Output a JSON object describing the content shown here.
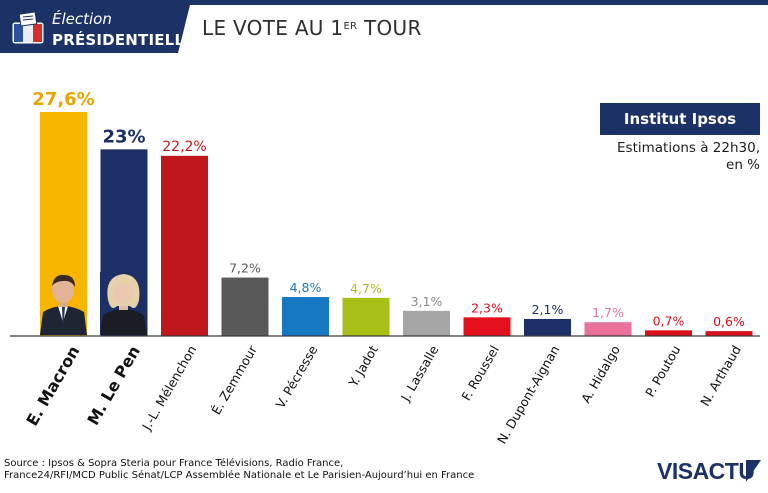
{
  "header": {
    "badge_line1": "Élection",
    "badge_line2": "PRÉSIDENTIELLE",
    "headline_main": "LE VOTE AU 1",
    "headline_sup": "ER",
    "headline_end": " TOUR"
  },
  "institute": {
    "name": "Institut Ipsos",
    "note_line1": "Estimations à 22h30,",
    "note_line2": "en %"
  },
  "source": {
    "line1": "Source : Ipsos & Sopra Steria pour France Télévisions, Radio France,",
    "line2": "France24/RFI/MCD Public Sénat/LCP Assemblée Nationale et Le Parisien-Aujourd’hui en France"
  },
  "logo": {
    "text": "VISACTU"
  },
  "chart_data": {
    "type": "bar",
    "ylim": [
      0,
      30
    ],
    "grid": false,
    "categories": [
      "E. Macron",
      "M. Le Pen",
      "J.-L. Mélenchon",
      "É. Zemmour",
      "V. Pécresse",
      "Y. Jadot",
      "J. Lassalle",
      "F. Roussel",
      "N. Dupont-Aignan",
      "A. Hidalgo",
      "P. Poutou",
      "N. Arthaud"
    ],
    "values": [
      27.6,
      23,
      22.2,
      7.2,
      4.8,
      4.7,
      3.1,
      2.3,
      2.1,
      1.7,
      0.7,
      0.6
    ],
    "value_labels": [
      "27,6%",
      "23%",
      "22,2%",
      "7,2%",
      "4,8%",
      "4,7%",
      "3,1%",
      "2,3%",
      "2,1%",
      "1,7%",
      "0,7%",
      "0,6%"
    ],
    "colors": [
      "#f7b500",
      "#1c2f66",
      "#c0171d",
      "#595959",
      "#1778c2",
      "#a8bf18",
      "#a6a6a6",
      "#e3101e",
      "#1c2f66",
      "#e8729a",
      "#d9101c",
      "#d9101c"
    ],
    "label_colors": [
      "#e8a400",
      "#1c2f66",
      "#c0171d",
      "#595959",
      "#1778c2",
      "#a8bf18",
      "#8c8c8c",
      "#e3101e",
      "#1c2f66",
      "#e8729a",
      "#d9101c",
      "#d9101c"
    ],
    "bold_categories": [
      "E. Macron",
      "M. Le Pen"
    ]
  }
}
